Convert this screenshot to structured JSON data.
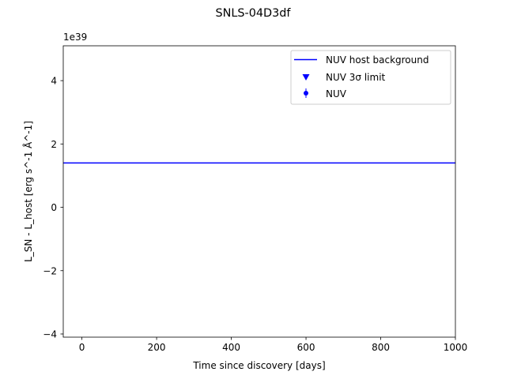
{
  "chart_data": {
    "type": "line",
    "title": "SNLS-04D3df",
    "xlabel": "Time since discovery [days]",
    "ylabel": "L_SN - L_host [erg s^-1 Å^-1]",
    "y_offset_text": "1e39",
    "y_scale": 1e+39,
    "xlim": [
      -50,
      1000
    ],
    "ylim": [
      -4.1,
      5.1
    ],
    "xticks": [
      0,
      200,
      400,
      600,
      800,
      1000
    ],
    "yticks": [
      -4,
      -2,
      0,
      2,
      4
    ],
    "grid": false,
    "legend_position": "top-right",
    "series": [
      {
        "name": "NUV host background",
        "kind": "hline",
        "y": 1.4,
        "color": "#0000ff"
      },
      {
        "name": "NUV 3σ limit",
        "kind": "scatter-marker",
        "marker": "triangle-down",
        "color": "#0000ff",
        "points": []
      },
      {
        "name": "NUV",
        "kind": "errorbar",
        "marker": "circle",
        "color": "#0000ff",
        "points": []
      }
    ]
  }
}
